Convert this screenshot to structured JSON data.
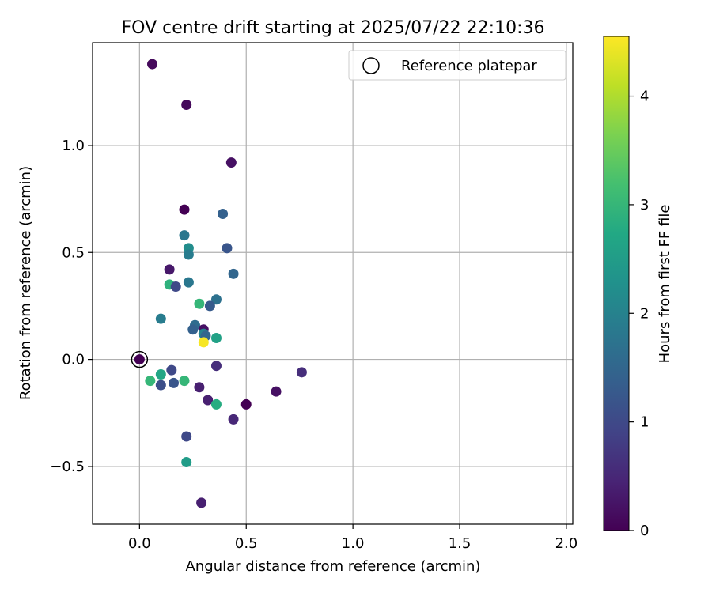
{
  "chart_data": {
    "type": "scatter",
    "title": "FOV centre drift starting at 2025/07/22 22:10:36",
    "xlabel": "Angular distance from reference (arcmin)",
    "ylabel": "Rotation from reference (arcmin)",
    "xlim": [
      -0.22,
      2.03
    ],
    "ylim": [
      -0.77,
      1.48
    ],
    "xticks": [
      0.0,
      0.5,
      1.0,
      1.5,
      2.0
    ],
    "xtick_labels": [
      "0.0",
      "0.5",
      "1.0",
      "1.5",
      "2.0"
    ],
    "yticks": [
      -0.5,
      0.0,
      0.5,
      1.0
    ],
    "ytick_labels": [
      "−0.5",
      "0.0",
      "0.5",
      "1.0"
    ],
    "grid": true,
    "legend": {
      "entries": [
        "Reference platepar"
      ],
      "position": "top-right"
    },
    "reference_point": {
      "x": 0.0,
      "y": 0.0
    },
    "colorbar": {
      "label": "Hours from first FF file",
      "colormap": "viridis",
      "range": [
        0,
        4.55
      ],
      "ticks": [
        0,
        1,
        2,
        3,
        4
      ],
      "tick_labels": [
        "0",
        "1",
        "2",
        "3",
        "4"
      ]
    },
    "points": [
      {
        "x": 0.06,
        "y": 1.38,
        "hours": 0.1
      },
      {
        "x": 0.22,
        "y": 1.19,
        "hours": 0.1
      },
      {
        "x": 0.43,
        "y": 0.92,
        "hours": 0.2
      },
      {
        "x": 0.21,
        "y": 0.7,
        "hours": 0.0
      },
      {
        "x": 0.39,
        "y": 0.68,
        "hours": 1.4
      },
      {
        "x": 0.21,
        "y": 0.58,
        "hours": 1.8
      },
      {
        "x": 0.23,
        "y": 0.52,
        "hours": 2.2
      },
      {
        "x": 0.41,
        "y": 0.52,
        "hours": 1.2
      },
      {
        "x": 0.23,
        "y": 0.49,
        "hours": 1.9
      },
      {
        "x": 0.14,
        "y": 0.42,
        "hours": 0.3
      },
      {
        "x": 0.44,
        "y": 0.4,
        "hours": 1.5
      },
      {
        "x": 0.14,
        "y": 0.35,
        "hours": 2.9
      },
      {
        "x": 0.17,
        "y": 0.34,
        "hours": 1.0
      },
      {
        "x": 0.23,
        "y": 0.36,
        "hours": 1.8
      },
      {
        "x": 0.36,
        "y": 0.28,
        "hours": 1.7
      },
      {
        "x": 0.28,
        "y": 0.26,
        "hours": 3.0
      },
      {
        "x": 0.33,
        "y": 0.25,
        "hours": 1.3
      },
      {
        "x": 0.1,
        "y": 0.19,
        "hours": 1.9
      },
      {
        "x": 0.26,
        "y": 0.16,
        "hours": 1.6
      },
      {
        "x": 0.25,
        "y": 0.14,
        "hours": 1.4
      },
      {
        "x": 0.3,
        "y": 0.14,
        "hours": 0.2
      },
      {
        "x": 0.3,
        "y": 0.12,
        "hours": 2.0
      },
      {
        "x": 0.31,
        "y": 0.11,
        "hours": 1.5
      },
      {
        "x": 0.36,
        "y": 0.1,
        "hours": 2.6
      },
      {
        "x": 0.3,
        "y": 0.08,
        "hours": 4.5
      },
      {
        "x": 0.36,
        "y": -0.03,
        "hours": 0.6
      },
      {
        "x": 0.15,
        "y": -0.05,
        "hours": 1.0
      },
      {
        "x": 0.1,
        "y": -0.07,
        "hours": 2.7
      },
      {
        "x": 0.05,
        "y": -0.1,
        "hours": 3.0
      },
      {
        "x": 0.21,
        "y": -0.1,
        "hours": 3.0
      },
      {
        "x": 0.1,
        "y": -0.12,
        "hours": 1.1
      },
      {
        "x": 0.16,
        "y": -0.11,
        "hours": 1.2
      },
      {
        "x": 0.28,
        "y": -0.13,
        "hours": 0.4
      },
      {
        "x": 0.76,
        "y": -0.06,
        "hours": 0.6
      },
      {
        "x": 0.64,
        "y": -0.15,
        "hours": 0.2
      },
      {
        "x": 0.32,
        "y": -0.19,
        "hours": 0.4
      },
      {
        "x": 0.36,
        "y": -0.21,
        "hours": 2.8
      },
      {
        "x": 0.5,
        "y": -0.21,
        "hours": 0.0
      },
      {
        "x": 0.44,
        "y": -0.28,
        "hours": 0.5
      },
      {
        "x": 0.22,
        "y": -0.36,
        "hours": 1.0
      },
      {
        "x": 0.22,
        "y": -0.48,
        "hours": 2.5
      },
      {
        "x": 0.29,
        "y": -0.67,
        "hours": 0.4
      },
      {
        "x": 0.0,
        "y": 0.0,
        "hours": 0.0
      }
    ]
  }
}
